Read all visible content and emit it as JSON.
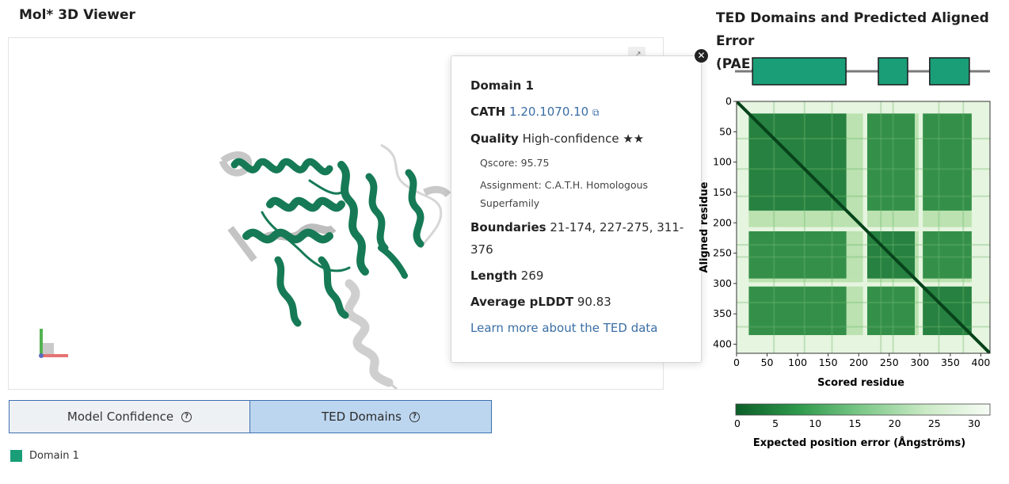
{
  "viewer": {
    "title": "Mol* 3D Viewer"
  },
  "tabs": {
    "confidence_label": "Model Confidence",
    "ted_label": "TED Domains"
  },
  "legend": {
    "items": [
      {
        "label": "Domain 1",
        "color": "#1a9e78"
      }
    ]
  },
  "popup": {
    "domain": "Domain 1",
    "cath_label": "CATH",
    "cath_id": "1.20.1070.10",
    "quality_label": "Quality",
    "quality_value": "High-confidence",
    "quality_stars": "★★",
    "qscore": "Qscore: 95.75",
    "assignment_line1": "Assignment: C.A.T.H. Homologous",
    "assignment_line2": "Superfamily",
    "boundaries_label": "Boundaries",
    "boundaries_line1": "21-174, 227-275, 311-",
    "boundaries_line2": "376",
    "length_label": "Length",
    "length_value": "269",
    "plddt_label": "Average pLDDT",
    "plddt_value": "90.83",
    "learn_more": "Learn more about the TED data"
  },
  "pae": {
    "title_line1": "TED Domains and Predicted Aligned Error",
    "title_line2": "(PAE)",
    "x_label": "Scored residue",
    "y_label": "Aligned residue",
    "x_ticks": [
      "0",
      "50",
      "100",
      "150",
      "200",
      "250",
      "300",
      "350",
      "400"
    ],
    "y_ticks": [
      "0",
      "50",
      "100",
      "150",
      "200",
      "250",
      "300",
      "350",
      "400"
    ],
    "colorbar_ticks": [
      "0",
      "5",
      "10",
      "15",
      "20",
      "25",
      "30"
    ],
    "colorbar_label": "Expected position error (Ångströms)",
    "residue_max": 415,
    "domain_segments": [
      [
        21,
        174
      ],
      [
        227,
        275
      ],
      [
        311,
        376
      ]
    ],
    "colors": {
      "low": "#0b5e28",
      "high": "#f7fcf5",
      "domain": "#1a9e78"
    }
  }
}
